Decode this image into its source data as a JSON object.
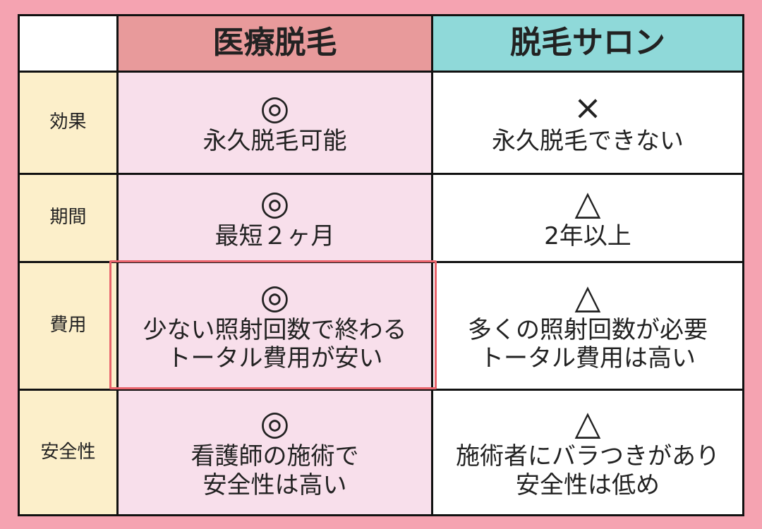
{
  "table": {
    "header": [
      "医療脱毛",
      "脱毛サロン"
    ],
    "rows": [
      {
        "label": "効果",
        "medical": {
          "symbol": "◎",
          "lines": [
            "永久脱毛可能"
          ]
        },
        "salon": {
          "symbol": "×",
          "lines": [
            "永久脱毛できない"
          ]
        }
      },
      {
        "label": "期間",
        "medical": {
          "symbol": "◎",
          "lines": [
            "最短２ヶ月"
          ]
        },
        "salon": {
          "symbol": "△",
          "lines": [
            "2年以上"
          ]
        }
      },
      {
        "label": "費用",
        "medical": {
          "symbol": "◎",
          "lines": [
            "少ない照射回数で終わる",
            "トータル費用が安い"
          ]
        },
        "salon": {
          "symbol": "△",
          "lines": [
            "多くの照射回数が必要",
            "トータル費用は高い"
          ]
        }
      },
      {
        "label": "安全性",
        "medical": {
          "symbol": "◎",
          "lines": [
            "看護師の施術で",
            "安全性は高い"
          ]
        },
        "salon": {
          "symbol": "△",
          "lines": [
            "施術者にバラつきがあり",
            "安全性は低め"
          ]
        }
      }
    ]
  }
}
